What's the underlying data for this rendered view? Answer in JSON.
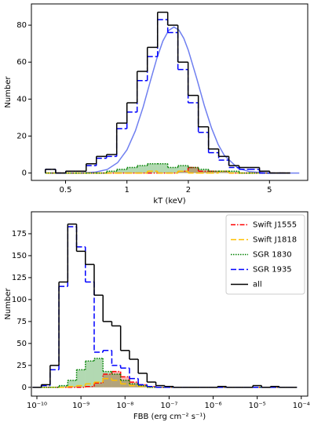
{
  "chart_data": [
    {
      "type": "histogram",
      "xlabel": "kT (keV)",
      "ylabel": "Number",
      "xscale": "log",
      "xlim": [
        0.34,
        7.7
      ],
      "ylim": [
        -4,
        91.5
      ],
      "xticks": [
        0.5,
        1,
        2,
        5
      ],
      "yticks": [
        0,
        20,
        40,
        60,
        80
      ],
      "bins": [
        0.398,
        0.447,
        0.501,
        0.562,
        0.631,
        0.708,
        0.794,
        0.891,
        1.0,
        1.122,
        1.259,
        1.413,
        1.585,
        1.778,
        1.995,
        2.239,
        2.512,
        2.818,
        3.162,
        3.548,
        3.981,
        4.467,
        5.012,
        5.623,
        6.31
      ],
      "series": [
        {
          "color": "#ff0000",
          "style": "dashdot",
          "fill": true,
          "values": [
            0,
            0,
            0,
            0,
            0,
            0,
            0,
            0,
            0,
            0,
            0,
            0,
            0,
            1,
            3,
            1,
            1,
            1,
            0,
            0,
            0,
            0,
            0,
            0
          ]
        },
        {
          "color": "#ffc000",
          "style": "dashed",
          "fill": false,
          "values": [
            0,
            0,
            0,
            0,
            0,
            0,
            0,
            0,
            0,
            0,
            1,
            0,
            0,
            1,
            0,
            0,
            0,
            1,
            0,
            0,
            0,
            0,
            0,
            0
          ]
        },
        {
          "color": "#008000",
          "style": "dotted",
          "fill": true,
          "values": [
            0,
            0,
            0,
            0,
            0,
            0,
            1,
            2,
            3,
            4,
            5,
            5,
            3,
            4,
            3,
            2,
            1,
            1,
            1,
            0,
            0,
            0,
            0,
            0
          ]
        },
        {
          "color": "#0000ff",
          "style": "dashed",
          "fill": false,
          "values": [
            2,
            0,
            1,
            1,
            4,
            8,
            9,
            24,
            33,
            50,
            63,
            83,
            76,
            56,
            38,
            22,
            11,
            7,
            3,
            2,
            2,
            0,
            0,
            0
          ]
        },
        {
          "color": "#000000",
          "style": "solid",
          "fill": false,
          "values": [
            2,
            0,
            1,
            1,
            5,
            9,
            10,
            27,
            38,
            55,
            68,
            87,
            80,
            60,
            42,
            25,
            13,
            9,
            4,
            3,
            3,
            1,
            0,
            0
          ]
        }
      ],
      "fit": {
        "color": "#6f7ff0",
        "x": [
          0.4,
          0.5,
          0.6,
          0.7,
          0.8,
          0.9,
          1.0,
          1.1,
          1.2,
          1.3,
          1.4,
          1.5,
          1.6,
          1.7,
          1.8,
          1.9,
          2.0,
          2.2,
          2.4,
          2.6,
          2.8,
          3.0,
          3.5,
          4,
          5,
          6,
          7
        ],
        "values": [
          0,
          0,
          0.1,
          0.5,
          1.9,
          5.6,
          12.5,
          22.8,
          35.6,
          49.4,
          61.8,
          71.4,
          77.1,
          79,
          77.3,
          72.9,
          66.4,
          51.1,
          36.2,
          24.3,
          15.5,
          9.6,
          2.6,
          0.7,
          0,
          0,
          0
        ]
      }
    },
    {
      "type": "histogram",
      "xlabel": "FBB (erg cm⁻² s⁻¹)",
      "ylabel": "Number",
      "xscale": "log",
      "legend": "upper right",
      "xlim": [
        7.5e-11,
        0.00014
      ],
      "ylim": [
        -10,
        200
      ],
      "xticks": [
        {
          "value": 1e-10,
          "label": "10⁻¹⁰"
        },
        {
          "value": 1e-09,
          "label": "10⁻⁹"
        },
        {
          "value": 1e-08,
          "label": "10⁻⁸"
        },
        {
          "value": 1e-07,
          "label": "10⁻⁷"
        },
        {
          "value": 1e-06,
          "label": "10⁻⁶"
        },
        {
          "value": 1e-05,
          "label": "10⁻⁵"
        },
        {
          "value": 0.0001,
          "label": "10⁻⁴"
        }
      ],
      "yticks": [
        0,
        25,
        50,
        75,
        100,
        125,
        150,
        175
      ],
      "bins": [
        7.943e-11,
        1.259e-10,
        1.995e-10,
        3.162e-10,
        5.012e-10,
        7.943e-10,
        1.259e-09,
        1.995e-09,
        3.162e-09,
        5.012e-09,
        7.943e-09,
        1.259e-08,
        1.995e-08,
        3.162e-08,
        5.012e-08,
        7.943e-08,
        1.259e-07,
        1.995e-07,
        3.162e-07,
        5.012e-07,
        7.943e-07,
        1.259e-06,
        1.995e-06,
        3.162e-06,
        5.012e-06,
        7.943e-06,
        1.259e-05,
        1.995e-05,
        3.162e-05,
        5.012e-05,
        7.943e-05
      ],
      "series": [
        {
          "name": "Swift J1555",
          "color": "#ff0000",
          "style": "dashdot",
          "fill": true,
          "values": [
            0,
            0,
            0,
            0,
            0,
            0,
            1,
            5,
            15,
            18,
            12,
            6,
            3,
            1,
            0,
            0,
            0,
            0,
            0,
            0,
            0,
            0,
            0,
            0,
            0,
            0,
            0,
            0,
            0,
            0
          ]
        },
        {
          "name": "Swift J1818",
          "color": "#ffc000",
          "style": "dashed",
          "fill": false,
          "values": [
            0,
            0,
            0,
            0,
            1,
            2,
            4,
            6,
            10,
            8,
            4,
            2,
            1,
            0,
            0,
            0,
            0,
            0,
            0,
            0,
            0,
            0,
            0,
            0,
            0,
            0,
            0,
            0,
            0,
            0
          ]
        },
        {
          "name": "SGR 1830",
          "color": "#008000",
          "style": "dotted",
          "fill": true,
          "values": [
            0,
            0,
            0,
            2,
            8,
            20,
            30,
            33,
            18,
            15,
            8,
            4,
            2,
            0,
            0,
            0,
            0,
            0,
            0,
            0,
            0,
            0,
            0,
            0,
            0,
            0,
            0,
            0,
            0,
            0
          ]
        },
        {
          "name": "SGR 1935",
          "color": "#0000ff",
          "style": "dashed",
          "fill": false,
          "values": [
            0,
            2,
            20,
            115,
            183,
            160,
            120,
            40,
            42,
            25,
            22,
            10,
            3,
            1,
            0,
            0,
            0,
            0,
            0,
            0,
            0,
            0,
            0,
            0,
            0,
            0,
            0,
            0,
            0,
            0
          ]
        },
        {
          "name": "all",
          "color": "#000000",
          "style": "solid",
          "fill": false,
          "values": [
            0,
            3,
            25,
            120,
            186,
            155,
            140,
            105,
            75,
            70,
            42,
            32,
            16,
            6,
            2,
            1,
            0,
            0,
            0,
            0,
            0,
            1,
            0,
            0,
            0,
            2,
            0,
            1,
            0,
            0
          ]
        }
      ]
    }
  ]
}
